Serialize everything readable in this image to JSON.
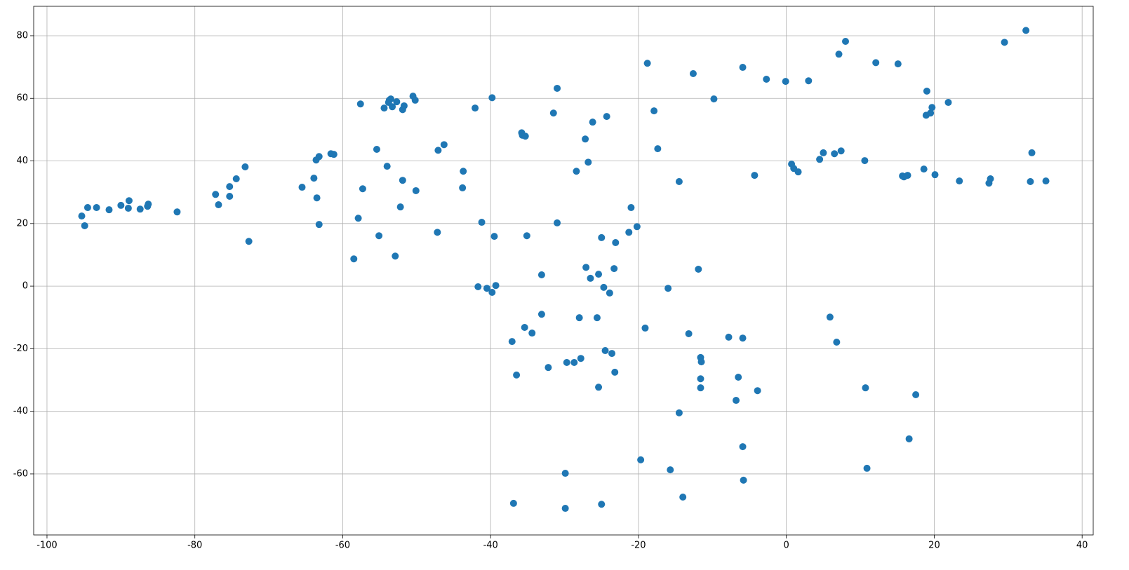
{
  "chart_data": {
    "type": "scatter",
    "color": "#1f77b4",
    "grid": true,
    "xlim": [
      -101.8,
      41.5
    ],
    "ylim": [
      -79.5,
      89.4
    ],
    "xticks": [
      -100,
      -80,
      -60,
      -40,
      -20,
      0,
      20,
      40
    ],
    "yticks": [
      -60,
      -40,
      -20,
      0,
      20,
      40,
      60,
      80
    ],
    "x": [
      -95.3,
      -94.9,
      -94.5,
      -93.3,
      -91.6,
      -90.0,
      -88.9,
      -89.0,
      -87.4,
      -86.4,
      -86.3,
      -82.4,
      -77.2,
      -76.8,
      -75.3,
      -75.3,
      -74.4,
      -73.2,
      -72.7,
      -65.5,
      -63.9,
      -63.6,
      -63.2,
      -63.5,
      -63.2,
      -61.6,
      -61.2,
      -58.5,
      -57.9,
      -57.6,
      -57.3,
      -55.4,
      -55.1,
      -54.4,
      -54.0,
      -53.7,
      -53.5,
      -53.8,
      -53.3,
      -52.9,
      -52.7,
      -52.2,
      -51.9,
      -51.9,
      -51.7,
      -50.5,
      -50.2,
      -50.1,
      -47.2,
      -47.1,
      -46.3,
      -43.7,
      -43.8,
      -42.1,
      -41.7,
      -41.2,
      -40.5,
      -39.8,
      -39.8,
      -39.5,
      -39.3,
      -37.1,
      -36.9,
      -36.5,
      -35.8,
      -35.7,
      -35.3,
      -35.1,
      -35.4,
      -34.4,
      -33.1,
      -33.1,
      -32.2,
      -31.5,
      -31.0,
      -31.0,
      -29.9,
      -29.9,
      -29.7,
      -28.7,
      -28.4,
      -28.0,
      -27.8,
      -27.2,
      -27.1,
      -26.8,
      -26.5,
      -26.2,
      -25.6,
      -25.4,
      -25.4,
      -25.0,
      -25.0,
      -24.7,
      -24.5,
      -24.3,
      -23.9,
      -23.6,
      -23.3,
      -23.2,
      -23.1,
      -21.3,
      -21.0,
      -20.2,
      -19.7,
      -19.1,
      -18.8,
      -17.9,
      -17.4,
      -16.0,
      -15.7,
      -14.5,
      -14.5,
      -14.0,
      -13.2,
      -12.6,
      -11.9,
      -11.6,
      -11.5,
      -11.6,
      -11.6,
      -9.8,
      -7.8,
      -6.8,
      -6.5,
      -5.9,
      -5.9,
      -5.9,
      -5.8,
      -4.3,
      -3.9,
      -2.7,
      -0.1,
      0.7,
      1.0,
      1.6,
      3.0,
      4.5,
      5.0,
      5.9,
      6.5,
      6.8,
      7.1,
      7.4,
      8.0,
      10.6,
      10.7,
      10.9,
      12.1,
      15.1,
      15.7,
      15.9,
      16.4,
      16.6,
      17.5,
      18.6,
      18.9,
      19.0,
      19.5,
      19.7,
      20.1,
      21.9,
      23.4,
      27.4,
      27.6,
      29.5,
      32.4,
      33.0,
      33.2,
      35.1
    ],
    "y": [
      22.4,
      19.3,
      25.1,
      25.1,
      24.4,
      25.8,
      27.3,
      24.9,
      24.6,
      25.5,
      26.2,
      23.7,
      29.3,
      26.0,
      31.8,
      28.7,
      34.3,
      38.1,
      14.3,
      31.6,
      34.5,
      40.3,
      41.4,
      28.2,
      19.7,
      42.3,
      42.1,
      8.7,
      21.7,
      58.2,
      31.1,
      43.7,
      16.1,
      56.9,
      38.3,
      59.4,
      59.8,
      58.7,
      57.3,
      9.6,
      58.9,
      25.3,
      33.8,
      56.4,
      57.6,
      60.7,
      59.4,
      30.5,
      17.2,
      43.4,
      45.2,
      36.7,
      31.4,
      56.9,
      -0.2,
      20.4,
      -0.7,
      -2.0,
      60.2,
      15.9,
      0.2,
      -17.7,
      -69.4,
      -28.4,
      49.0,
      48.2,
      47.9,
      16.1,
      -13.2,
      -15.0,
      3.6,
      -9.0,
      -26.0,
      55.3,
      63.2,
      20.2,
      -59.8,
      -71.0,
      -24.4,
      -24.4,
      36.7,
      -10.1,
      -23.1,
      47.0,
      6.0,
      39.6,
      2.5,
      52.4,
      -10.1,
      3.8,
      -32.3,
      -69.7,
      15.5,
      -0.4,
      -20.6,
      54.2,
      -2.2,
      -21.5,
      5.6,
      -27.5,
      13.9,
      17.2,
      25.1,
      19.0,
      -55.5,
      -13.4,
      71.2,
      56.0,
      43.9,
      -0.7,
      -58.7,
      33.4,
      -40.5,
      -67.4,
      -15.2,
      67.9,
      5.4,
      -22.8,
      -24.2,
      -29.6,
      -32.5,
      59.8,
      -16.3,
      -36.5,
      -29.1,
      69.9,
      -16.6,
      -51.3,
      -62.0,
      35.4,
      -33.4,
      66.1,
      65.4,
      39.0,
      37.6,
      36.5,
      65.6,
      40.5,
      42.6,
      -9.9,
      42.3,
      -17.9,
      74.1,
      43.2,
      78.2,
      40.1,
      -32.5,
      -58.2,
      71.4,
      71.0,
      35.2,
      34.9,
      35.4,
      -48.8,
      -34.7,
      37.4,
      54.6,
      62.3,
      55.3,
      57.1,
      35.6,
      58.7,
      33.6,
      32.9,
      34.3,
      77.9,
      81.7,
      33.4,
      42.6,
      33.6
    ]
  }
}
